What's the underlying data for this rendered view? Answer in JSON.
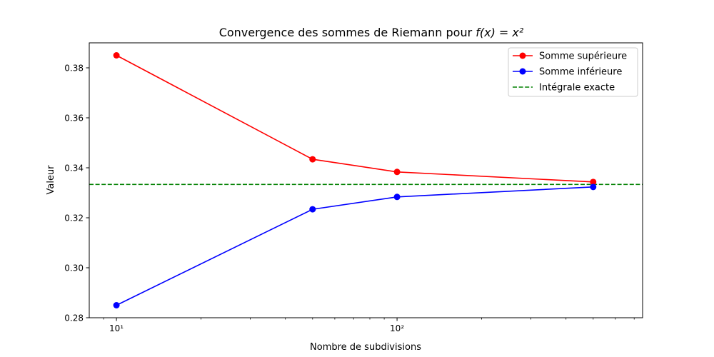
{
  "chart_data": {
    "type": "line",
    "title_prefix": "Convergence des sommes de Riemann pour ",
    "title_math": "f(x) = x²",
    "xlabel": "Nombre de subdivisions",
    "ylabel": "Valeur",
    "xscale": "log",
    "xlim": [
      8,
      750
    ],
    "ylim": [
      0.28,
      0.39
    ],
    "x_major_ticks": [
      10,
      100
    ],
    "x_major_tick_labels": [
      "10¹",
      "10²"
    ],
    "y_ticks": [
      0.28,
      0.3,
      0.32,
      0.34,
      0.36,
      0.38
    ],
    "y_tick_labels": [
      "0.28",
      "0.30",
      "0.32",
      "0.34",
      "0.36",
      "0.38"
    ],
    "grid": false,
    "legend_position": "top-right",
    "x": [
      10,
      50,
      100,
      500
    ],
    "series": [
      {
        "name": "Somme supérieure",
        "color": "#ff0000",
        "marker": "circle",
        "values": [
          0.385,
          0.3434,
          0.33835,
          0.33433
        ]
      },
      {
        "name": "Somme inférieure",
        "color": "#0000ff",
        "marker": "circle",
        "values": [
          0.285,
          0.3234,
          0.32835,
          0.33233
        ]
      }
    ],
    "reference_line": {
      "name": "Intégrale exacte",
      "value": 0.333333,
      "color": "#008000",
      "style": "dashed"
    }
  }
}
